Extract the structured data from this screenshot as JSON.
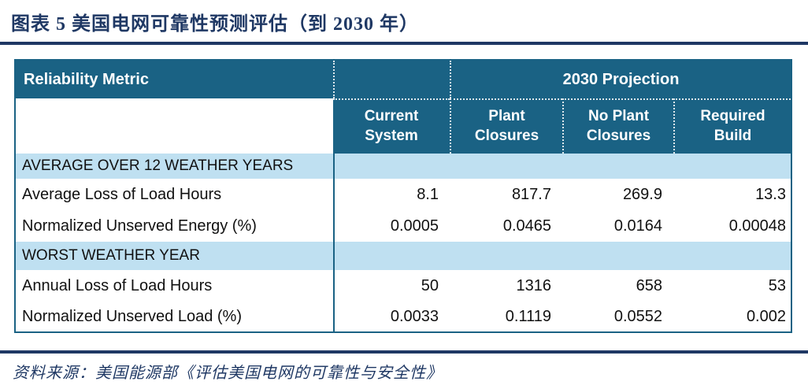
{
  "title": "图表 5  美国电网可靠性预测评估（到 2030 年）",
  "source": "资料来源：美国能源部《评估美国电网的可靠性与安全性》",
  "colors": {
    "header_teal": "#1a6284",
    "band_light_blue": "#bfe0f1",
    "navy_accent": "#1f3864",
    "body_text": "#111111"
  },
  "table": {
    "corner_header": "Reliability Metric",
    "projection_header": "2030 Projection",
    "columns": [
      {
        "label": "Current System",
        "line1": "Current",
        "line2": "System"
      },
      {
        "label": "Plant Closures",
        "line1": "Plant",
        "line2": "Closures"
      },
      {
        "label": "No Plant Closures",
        "line1": "No Plant",
        "line2": "Closures"
      },
      {
        "label": "Required Build",
        "line1": "Required",
        "line2": "Build"
      }
    ],
    "sections": [
      {
        "label": "AVERAGE OVER 12 WEATHER YEARS",
        "rows": [
          {
            "metric": "Average Loss of Load Hours",
            "values": [
              "8.1",
              "817.7",
              "269.9",
              "13.3"
            ]
          },
          {
            "metric": "Normalized Unserved Energy (%)",
            "values": [
              "0.0005",
              "0.0465",
              "0.0164",
              "0.00048"
            ]
          }
        ]
      },
      {
        "label": "WORST WEATHER YEAR",
        "rows": [
          {
            "metric": "Annual Loss of Load Hours",
            "values": [
              "50",
              "1316",
              "658",
              "53"
            ]
          },
          {
            "metric": "Normalized Unserved Load (%)",
            "values": [
              "0.0033",
              "0.1119",
              "0.0552",
              "0.002"
            ]
          }
        ]
      }
    ]
  }
}
